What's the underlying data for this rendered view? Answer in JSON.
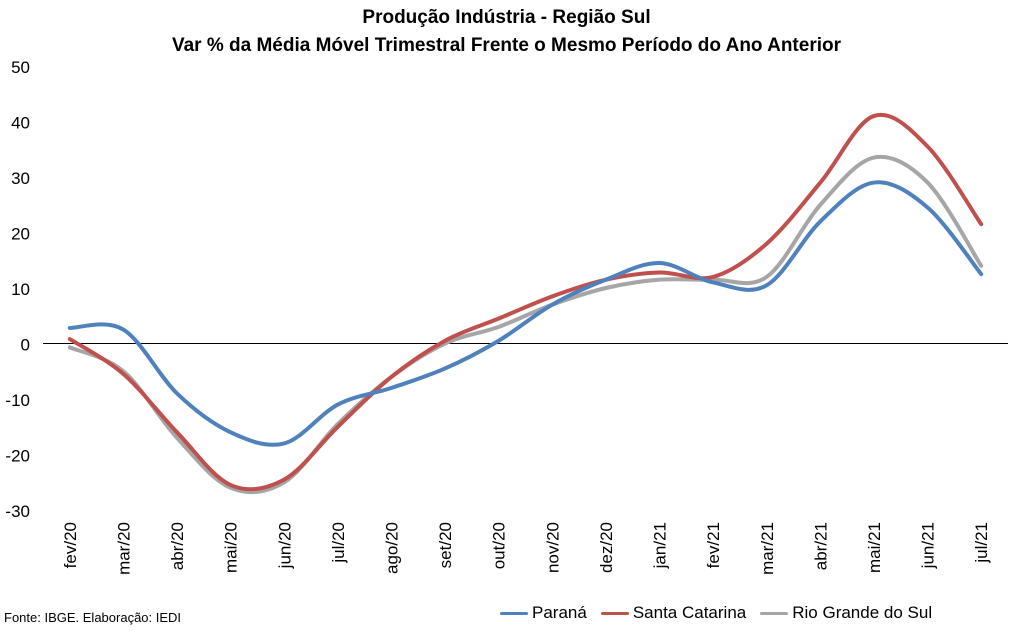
{
  "chart_data": {
    "type": "line",
    "title": "Produção Indústria - Região Sul",
    "subtitle": "Var % da Média Móvel Trimestral Frente o Mesmo Período do Ano Anterior",
    "categories": [
      "fev/20",
      "mar/20",
      "abr/20",
      "mai/20",
      "jun/20",
      "jul/20",
      "ago/20",
      "set/20",
      "out/20",
      "nov/20",
      "dez/20",
      "jan/21",
      "fev/21",
      "mar/21",
      "abr/21",
      "mai/21",
      "jun/21",
      "jul/21"
    ],
    "ylim": [
      -30,
      50
    ],
    "yticks": [
      50,
      40,
      30,
      20,
      10,
      0,
      -10,
      -20,
      -30
    ],
    "grid": false,
    "legend_position": "bottom-right",
    "series": [
      {
        "name": "Paraná",
        "color": "#4F81BD",
        "values": [
          2.8,
          2.5,
          -9,
          -16,
          -18,
          -11,
          -8,
          -4.5,
          0.5,
          7,
          11.5,
          14.5,
          11,
          10.5,
          22,
          29,
          24.5,
          12.5
        ]
      },
      {
        "name": "Santa Catarina",
        "color": "#C0504D",
        "values": [
          0.8,
          -5.5,
          -16,
          -25.5,
          -24.5,
          -15,
          -6,
          0.5,
          4.5,
          8.5,
          11.5,
          12.8,
          12,
          18,
          29,
          41,
          35.5,
          21.5
        ]
      },
      {
        "name": "Rio Grande do Sul",
        "color": "#A6A6A6",
        "values": [
          -0.7,
          -5,
          -17,
          -26,
          -25,
          -14.5,
          -6,
          0,
          3,
          7,
          10,
          11.5,
          11.5,
          12,
          25,
          33.5,
          29,
          14
        ]
      }
    ],
    "source_note": "Fonte: IBGE. Elaboração: IEDI"
  }
}
